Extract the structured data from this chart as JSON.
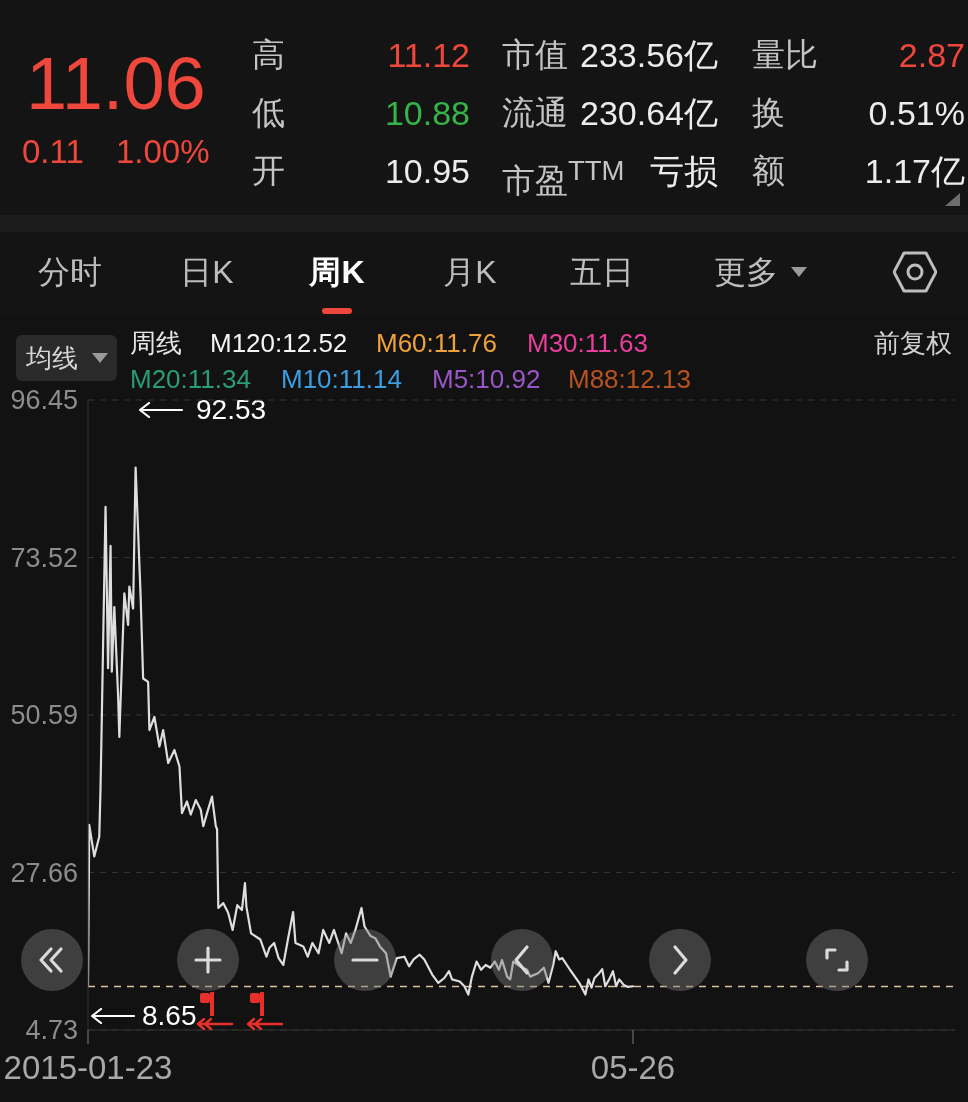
{
  "chart_data": [
    {
      "type": "other",
      "annotations": [
        "11.06",
        "0.11",
        "1.00%",
        "高",
        "11.12",
        "市值",
        "233.56亿",
        "量比",
        "2.87",
        "低",
        "10.88",
        "流通",
        "230.64亿",
        "换",
        "0.51%",
        "开",
        "10.95",
        "市盈$^{TTM}$",
        "亏损",
        "额",
        "1.17亿"
      ]
    },
    {
      "type": "line",
      "x": [
        "2015-01-23",
        "2015-01-30",
        "2015-02-27",
        "2015-03-27",
        "2015-04-03",
        "2015-04-10",
        "2015-05-01",
        "2015-05-15",
        "2015-05-29",
        "2015-06-05",
        "2015-06-19",
        "2015-07-10",
        "2015-07-17",
        "2015-08-14",
        "2015-09-04",
        "2015-09-11",
        "2015-10-02",
        "2015-10-16",
        "2015-11-13",
        "2015-11-27",
        "2015-12-25",
        "2016-01-01",
        "2016-01-29",
        "2016-02-26",
        "2016-03-18",
        "2016-04-15",
        "2016-05-20",
        "2016-06-17",
        "2016-07-01",
        "2016-07-29",
        "2016-08-19",
        "2016-09-16",
        "2016-10-14",
        "2016-10-28",
        "2016-11-18",
        "2016-12-16",
        "2017-01-06",
        "2017-01-13",
        "2017-01-20",
        "2017-02-17",
        "2017-03-16",
        "2017-04-10",
        "2017-05-06",
        "2017-06-01",
        "2017-06-18",
        "2017-06-26",
        "2017-07-22",
        "2017-09-12",
        "2017-10-16",
        "2017-11-02",
        "2017-11-28",
        "2017-12-23",
        "2018-01-18",
        "2018-02-13",
        "2018-03-14",
        "2018-03-27",
        "2018-05-10",
        "2018-06-04",
        "2018-06-30",
        "2018-08-03",
        "2018-08-29",
        "2018-10-02",
        "2018-10-28",
        "2018-12-10",
        "2019-01-04",
        "2019-01-30",
        "2019-02-25",
        "2019-03-31",
        "2019-04-17",
        "2019-05-21",
        "2019-06-16",
        "2019-07-12",
        "2019-08-15",
        "2019-09-10",
        "2019-10-14",
        "2019-11-26",
        "2019-12-22",
        "2020-01-16",
        "2020-02-19",
        "2020-03-16",
        "2020-04-29",
        "2020-06-02",
        "2020-07-06",
        "2020-08-01",
        "2020-08-18",
        "2020-09-30",
        "2020-10-26",
        "2020-11-17",
        "2020-12-07",
        "2021-01-02",
        "2021-01-27",
        "2021-02-22",
        "2021-03-20",
        "2021-04-14",
        "2021-05-07",
        "2021-05-24",
        "2021-06-22",
        "2021-07-09",
        "2021-07-26",
        "2021-08-21",
        "2021-09-16",
        "2021-10-11",
        "2021-10-28",
        "2021-12-11",
        "2022-01-13",
        "2022-02-08",
        "2022-03-06",
        "2022-03-20",
        "2022-04-09",
        "2022-04-26",
        "2022-06-08",
        "2022-07-30",
        "2022-09-02",
        "2022-09-19",
        "2022-10-06",
        "2022-10-23",
        "2022-11-18",
        "2022-12-05",
        "2022-12-22",
        "2023-01-13",
        "2023-02-03",
        "2023-02-21",
        "2023-03-10",
        "2023-04-04",
        "2023-04-28",
        "2023-05-26"
      ],
      "series": [
        {
          "color": "#dedede",
          "values": [
            11.1,
            34.6,
            30.0,
            32.9,
            40.0,
            49.9,
            80.9,
            57.4,
            75.2,
            56.9,
            66.3,
            53.5,
            47.4,
            68.3,
            63.7,
            69.3,
            66.1,
            86.6,
            67.9,
            55.9,
            55.4,
            48.4,
            50.3,
            46.0,
            48.4,
            43.6,
            45.5,
            43.1,
            36.3,
            38.0,
            36.1,
            38.2,
            36.8,
            34.4,
            36.3,
            38.7,
            34.4,
            34.0,
            22.5,
            23.2,
            21.8,
            19.3,
            22.9,
            22.2,
            26.1,
            22.7,
            18.8,
            17.9,
            15.4,
            16.7,
            17.4,
            15.2,
            14.2,
            17.9,
            21.9,
            17.4,
            16.9,
            15.4,
            17.4,
            15.9,
            19.3,
            17.4,
            19.3,
            15.9,
            18.8,
            17.4,
            19.3,
            22.5,
            19.8,
            18.4,
            18.1,
            16.9,
            15.9,
            12.5,
            15.2,
            15.4,
            14.0,
            15.0,
            15.7,
            15.0,
            12.8,
            11.6,
            12.3,
            13.3,
            12.1,
            11.8,
            11.1,
            9.9,
            12.5,
            14.7,
            13.5,
            14.2,
            13.8,
            14.7,
            13.5,
            14.9,
            12.5,
            12.1,
            14.7,
            14.2,
            13.8,
            13.5,
            12.5,
            13.0,
            13.8,
            11.6,
            14.2,
            16.2,
            15.0,
            15.2,
            13.5,
            11.6,
            9.9,
            12.1,
            10.9,
            12.3,
            13.0,
            13.6,
            11.1,
            12.1,
            13.3,
            11.1,
            12.1,
            11.3,
            11.0,
            11.1
          ]
        }
      ],
      "xlim": [
        "2015-01-23",
        "2028-04-28"
      ],
      "xticks": [
        "2015-01-23",
        {
          "value": "2023-05-26",
          "label": "05-26"
        }
      ],
      "ylim": [
        4.73,
        96.45
      ],
      "yticks": [
        4.73,
        27.66,
        50.59,
        73.52,
        96.45
      ],
      "grid": "y",
      "ref_lines": [
        {
          "axis": "y",
          "value": 11.06,
          "color": "#dcc29c",
          "line_style": "dashed"
        }
      ],
      "annotations": [
        "分时",
        "日K",
        "周K",
        "月K",
        "五日",
        "更多",
        "均线",
        "周线",
        "M120:12.52",
        "M60:11.76",
        "M30:11.63",
        "M20:11.34",
        "M10:11.14",
        "M5:10.92",
        "M88:12.13",
        "前复权",
        "92.53",
        "8.65"
      ]
    }
  ]
}
